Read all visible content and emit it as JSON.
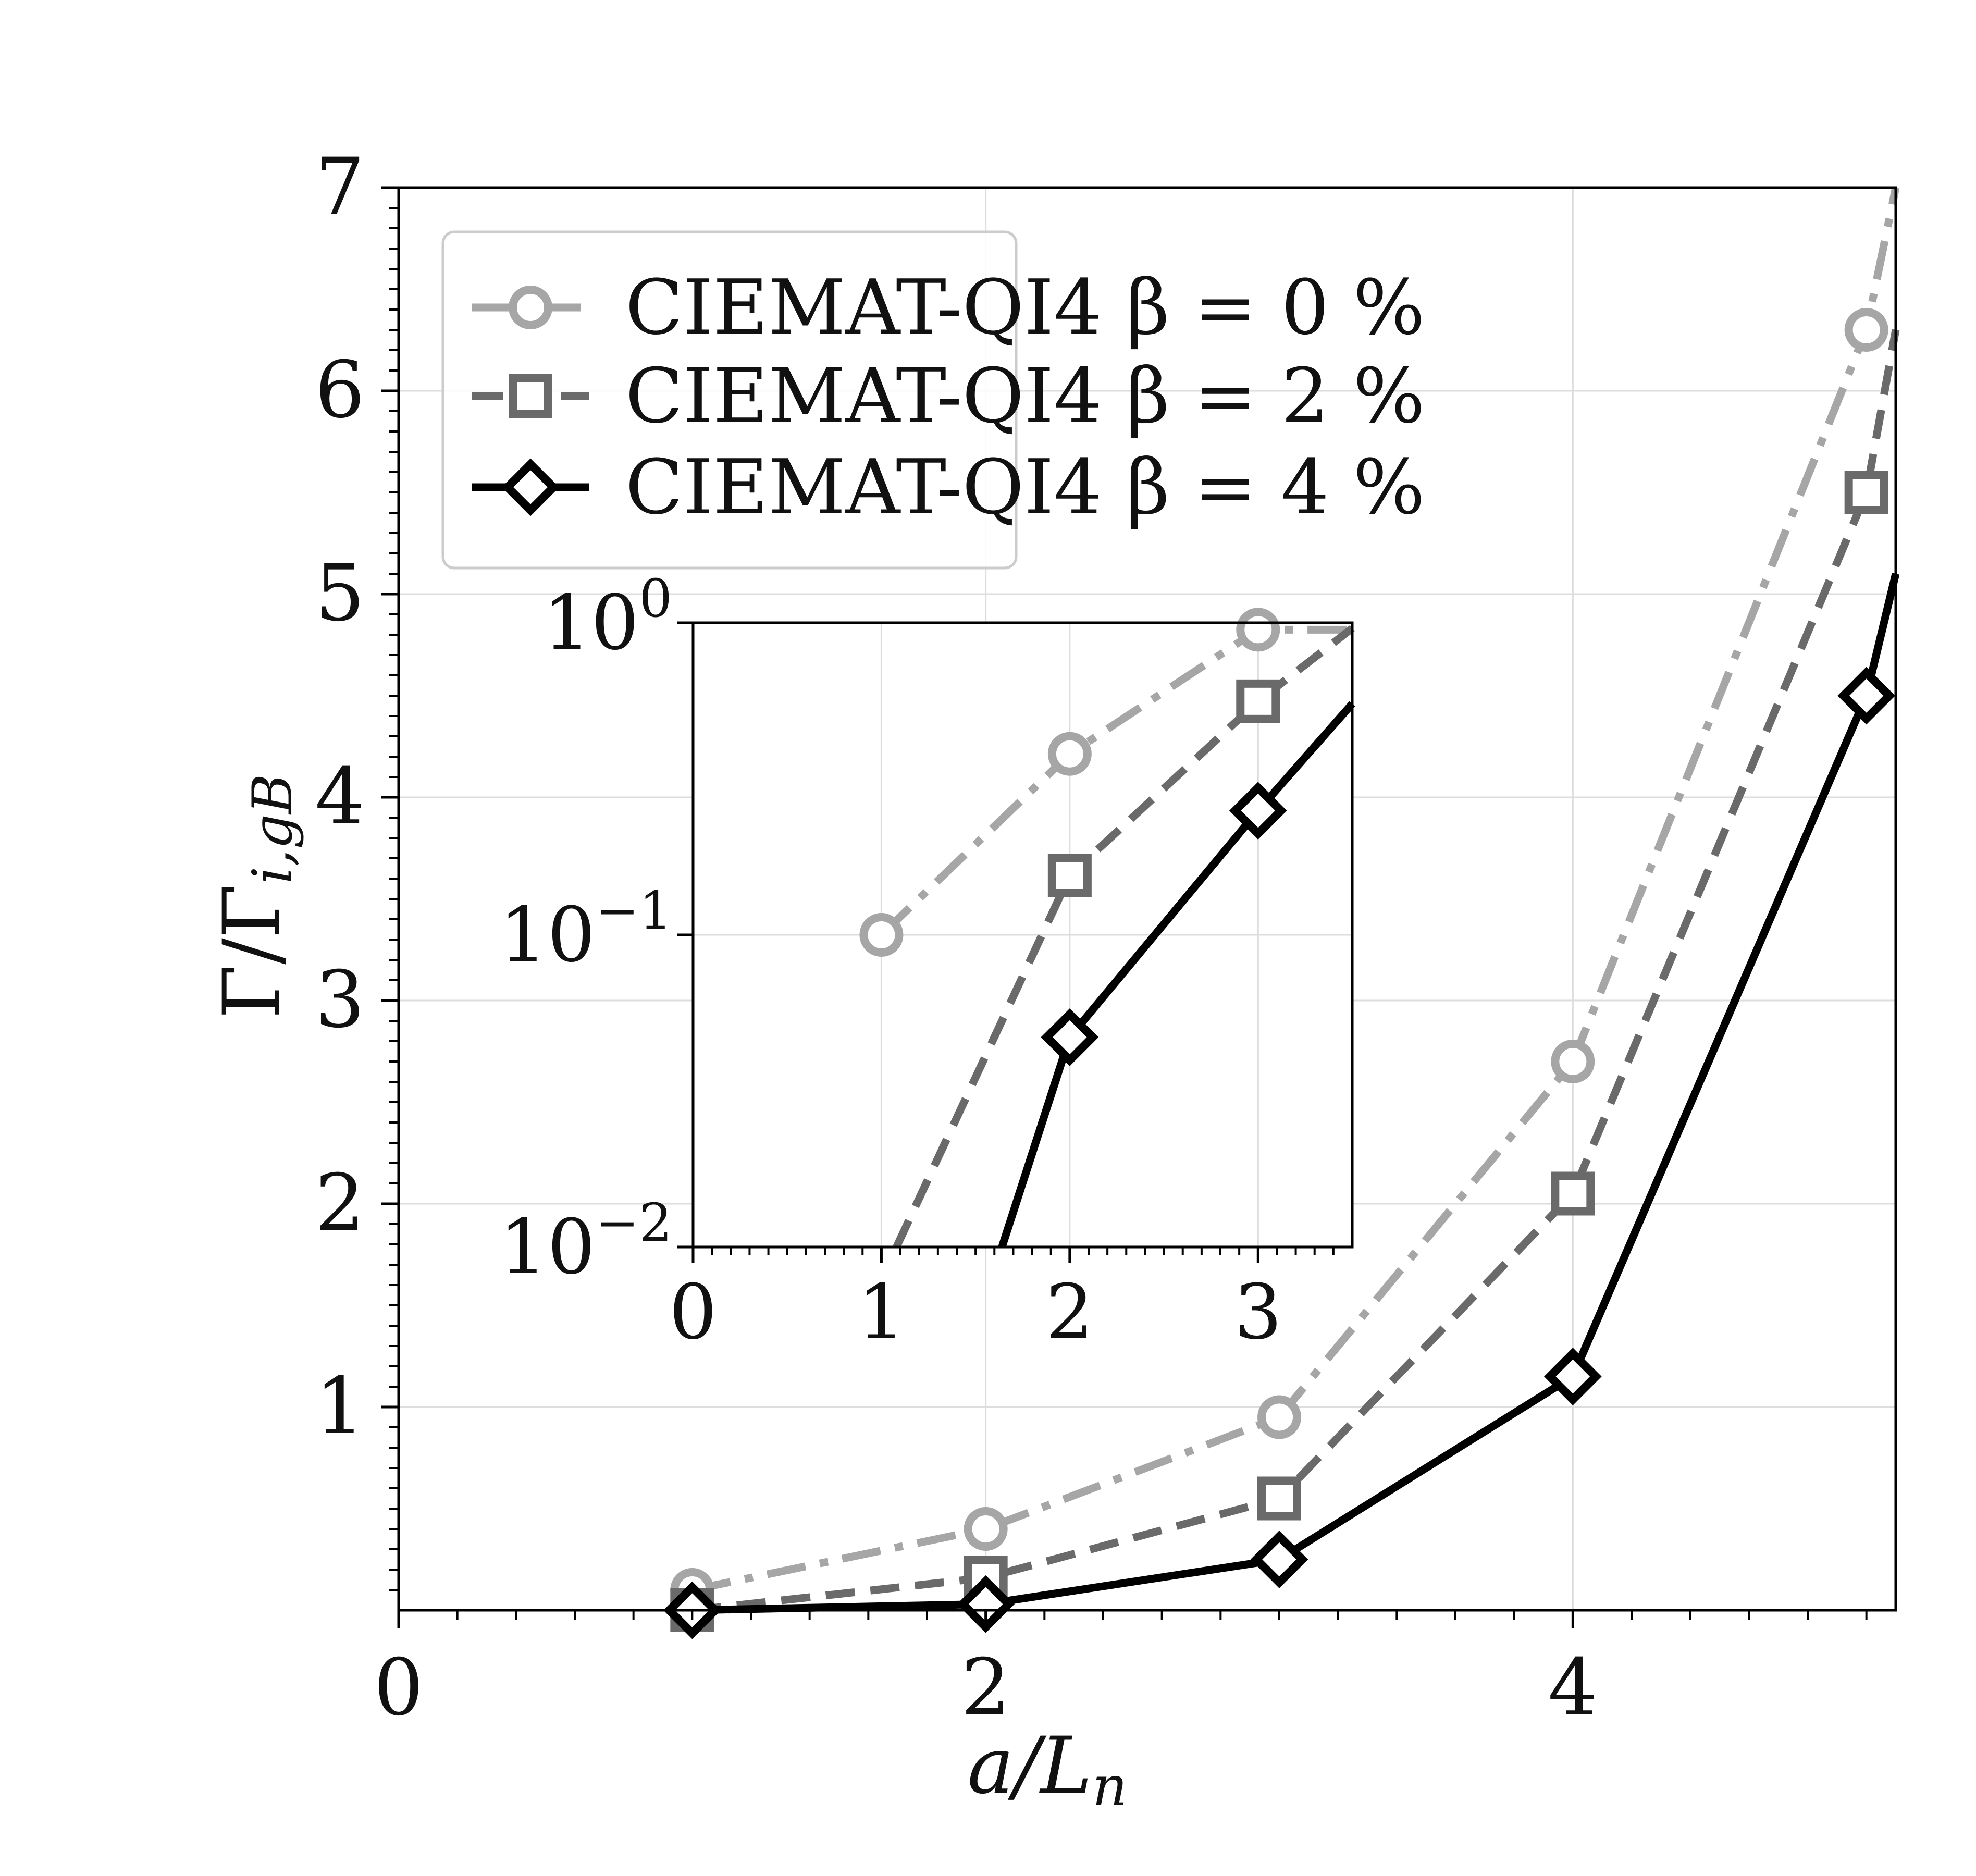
{
  "chart_data": [
    {
      "type": "line",
      "panel": "main",
      "title": "",
      "xlabel": "a/L",
      "xlabel_subscript": "n",
      "ylabel": "Γ/Γ",
      "ylabel_subscript": "i,gB",
      "xlim": [
        0,
        5.1
      ],
      "ylim": [
        0.0,
        7
      ],
      "x_ticks": [
        "0",
        "2",
        "4"
      ],
      "y_ticks": [
        "1",
        "2",
        "3",
        "4",
        "5",
        "6",
        "7"
      ],
      "grid": true,
      "legend_position": "upper-left",
      "x": [
        1,
        2,
        3,
        4,
        5,
        5.1
      ],
      "series": [
        {
          "name": "CIEMAT-QI4 β = 0 %",
          "values": [
            0.1,
            0.4,
            0.95,
            2.7,
            6.3,
            7.0
          ],
          "color": "#a6a6a6",
          "line": "dashdot",
          "marker": "circle"
        },
        {
          "name": "CIEMAT-QI4 β = 2 %",
          "values": [
            0.0,
            0.16,
            0.55,
            2.05,
            5.5,
            6.3
          ],
          "color": "#6a6a6a",
          "line": "dashed",
          "marker": "square"
        },
        {
          "name": "CIEMAT-QI4 β = 4 %",
          "values": [
            0.0,
            0.03,
            0.25,
            1.15,
            4.5,
            5.1
          ],
          "color": "#000000",
          "line": "solid",
          "marker": "diamond"
        }
      ]
    },
    {
      "type": "line",
      "panel": "inset",
      "yscale": "log",
      "xlim": [
        0,
        3.5
      ],
      "ylim": [
        0.01,
        1.0
      ],
      "x_ticks": [
        "0",
        "1",
        "2",
        "3"
      ],
      "y_ticks": [
        {
          "value": 1.0,
          "base": "10",
          "exp": "0"
        },
        {
          "value": 0.1,
          "base": "10",
          "exp": "−1"
        },
        {
          "value": 0.01,
          "base": "10",
          "exp": "−2"
        }
      ],
      "grid": true,
      "series": [
        {
          "name": "CIEMAT-QI4 β = 0 %",
          "x": [
            1,
            2,
            3,
            3.5
          ],
          "values": [
            0.1,
            0.38,
            0.95,
            0.95
          ],
          "color": "#a6a6a6",
          "line": "dashdot",
          "marker": "circle",
          "marker_count": 3
        },
        {
          "name": "CIEMAT-QI4 β = 2 %",
          "x": [
            1.08,
            2,
            3,
            3.5
          ],
          "values": [
            0.01,
            0.155,
            0.56,
            0.96
          ],
          "color": "#6a6a6a",
          "line": "dashed",
          "marker": "square",
          "marker_from": 1
        },
        {
          "name": "CIEMAT-QI4 β = 4 %",
          "x": [
            1.64,
            2,
            3,
            3.5
          ],
          "values": [
            0.01,
            0.047,
            0.25,
            0.55
          ],
          "color": "#000000",
          "line": "solid",
          "marker": "diamond",
          "marker_from": 1
        }
      ]
    }
  ]
}
